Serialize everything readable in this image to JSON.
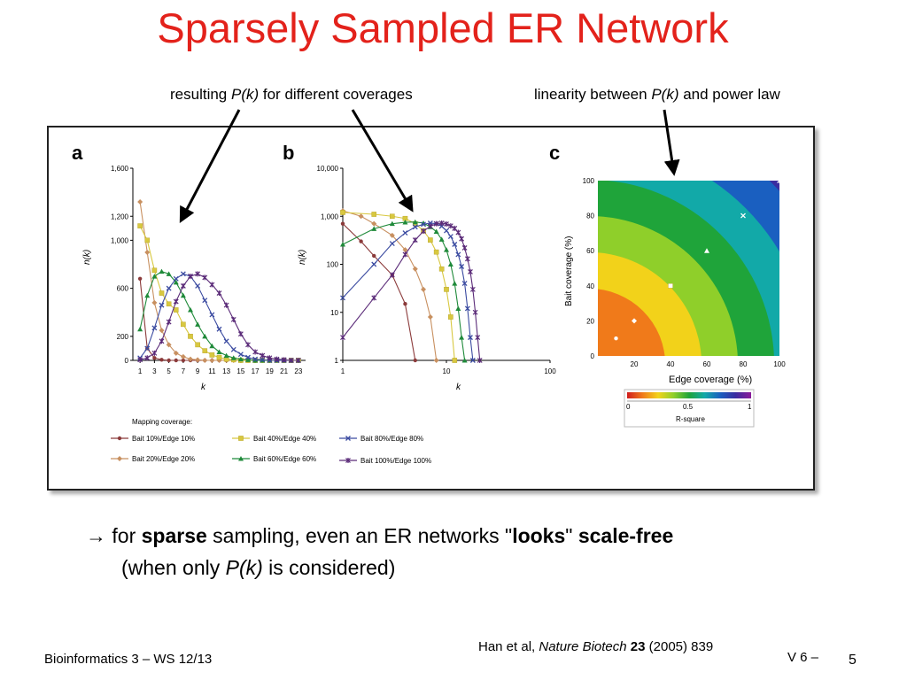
{
  "slide": {
    "title": "Sparsely Sampled ER Network",
    "annotation_left": {
      "pre": "resulting ",
      "italic": "P(k)",
      "post": " for different coverages"
    },
    "annotation_right": {
      "pre": "linearity between ",
      "italic": "P(k)",
      "post": " and power law"
    },
    "bullet": {
      "arrow": "→",
      "p1": " for ",
      "b1": "sparse",
      "p2": " sampling, even an ER networks \"",
      "b2": "looks",
      "p3": "\" ",
      "b3": "scale-free",
      "line2_pre": "(when only ",
      "line2_italic": "P(k)",
      "line2_post": " is considered)"
    },
    "citation": {
      "authors": "Han et al,  ",
      "journal": "Nature Biotech",
      "volume": "23",
      "rest": " (2005) 839"
    },
    "footer_left": "Bioinformatics 3 – WS 12/13",
    "footer_right": "V 6  –",
    "page_number": "5"
  },
  "panels": {
    "a": {
      "label": "a",
      "ylabel": "n(k)",
      "xlabel": "k",
      "yticks": [
        "1,600",
        "1,200",
        "1,000",
        "600",
        "200",
        "0"
      ],
      "xticks": [
        "1",
        "3",
        "5",
        "7",
        "9",
        "11",
        "13",
        "15",
        "17",
        "19",
        "21",
        "23"
      ]
    },
    "b": {
      "label": "b",
      "ylabel": "n(k)",
      "xlabel": "k",
      "yticks": [
        "10,000",
        "1,000",
        "100",
        "10",
        "1"
      ],
      "xticks": [
        "1",
        "10",
        "100"
      ]
    },
    "c": {
      "label": "c",
      "ylabel": "Bait coverage  (%)",
      "xlabel": "Edge coverage  (%)",
      "yticks": [
        "100",
        "80",
        "60",
        "40",
        "20",
        "0"
      ],
      "xticks": [
        "20",
        "40",
        "60",
        "80",
        "100"
      ],
      "colorbar_title": "R-square",
      "colorbar_ticks": [
        "0",
        "0.5",
        "1"
      ],
      "colors": [
        "#d01c1c",
        "#f07a1a",
        "#f2d21a",
        "#8fcf2a",
        "#1fa43a",
        "#12a9a8",
        "#1a5fc0",
        "#3a2ca0",
        "#8a1a9a"
      ]
    },
    "legend": {
      "title": "Mapping coverage:",
      "items": [
        {
          "label": "Bait 10%/Edge 10%",
          "color": "#8b3a3a",
          "marker": "circle"
        },
        {
          "label": "Bait 40%/Edge 40%",
          "color": "#d8c840",
          "marker": "square"
        },
        {
          "label": "Bait 80%/Edge 80%",
          "color": "#3a4aa0",
          "marker": "x"
        },
        {
          "label": "Bait 20%/Edge 20%",
          "color": "#c89060",
          "marker": "diamond"
        },
        {
          "label": "Bait 60%/Edge 60%",
          "color": "#1f8a3a",
          "marker": "triangle"
        },
        {
          "label": "Bait 100%/Edge 100%",
          "color": "#5a2a78",
          "marker": "asterisk"
        }
      ]
    }
  },
  "chart_data": [
    {
      "type": "line",
      "panel": "a",
      "x": [
        1,
        2,
        3,
        4,
        5,
        6,
        7,
        8,
        9,
        10,
        11,
        12,
        13,
        14,
        15,
        16,
        17,
        18,
        19,
        20,
        21,
        22,
        23
      ],
      "ylim": [
        0,
        1600
      ],
      "series": [
        {
          "name": "Bait 10%/Edge 10%",
          "values": [
            680,
            100,
            20,
            5,
            0,
            0,
            0,
            0,
            0,
            0,
            0,
            0,
            0,
            0,
            0,
            0,
            0,
            0,
            0,
            0,
            0,
            0,
            0
          ]
        },
        {
          "name": "Bait 20%/Edge 20%",
          "values": [
            1320,
            900,
            480,
            250,
            130,
            60,
            30,
            10,
            5,
            0,
            0,
            0,
            0,
            0,
            0,
            0,
            0,
            0,
            0,
            0,
            0,
            0,
            0
          ]
        },
        {
          "name": "Bait 40%/Edge 40%",
          "values": [
            1120,
            1000,
            750,
            560,
            470,
            420,
            300,
            200,
            130,
            80,
            45,
            25,
            10,
            5,
            0,
            0,
            0,
            0,
            0,
            0,
            0,
            0,
            0
          ]
        },
        {
          "name": "Bait 60%/Edge 60%",
          "values": [
            260,
            540,
            700,
            740,
            720,
            650,
            540,
            420,
            300,
            200,
            120,
            70,
            40,
            20,
            10,
            5,
            0,
            0,
            0,
            0,
            0,
            0,
            0
          ]
        },
        {
          "name": "Bait 80%/Edge 80%",
          "values": [
            20,
            100,
            270,
            460,
            600,
            680,
            720,
            700,
            620,
            500,
            380,
            260,
            160,
            90,
            50,
            25,
            10,
            5,
            0,
            0,
            0,
            0,
            0
          ]
        },
        {
          "name": "Bait 100%/Edge 100%",
          "values": [
            5,
            20,
            60,
            160,
            320,
            490,
            620,
            700,
            720,
            690,
            630,
            560,
            460,
            340,
            220,
            130,
            70,
            40,
            20,
            10,
            5,
            0,
            0
          ]
        }
      ]
    },
    {
      "type": "line",
      "panel": "b",
      "scale": "log-log",
      "xlim": [
        1,
        100
      ],
      "ylim": [
        1,
        10000
      ],
      "series": [
        {
          "name": "Bait 10%/Edge 10%",
          "x": [
            1,
            1.5,
            2,
            3,
            4,
            5
          ],
          "values": [
            700,
            300,
            150,
            60,
            15,
            1
          ]
        },
        {
          "name": "Bait 20%/Edge 20%",
          "x": [
            1,
            1.5,
            2,
            3,
            4,
            5,
            6,
            7,
            8
          ],
          "values": [
            1300,
            1000,
            700,
            400,
            200,
            80,
            30,
            8,
            1
          ]
        },
        {
          "name": "Bait 40%/Edge 40%",
          "x": [
            1,
            2,
            3,
            4,
            5,
            6,
            7,
            8,
            9,
            10,
            11,
            12
          ],
          "values": [
            1200,
            1100,
            1000,
            900,
            700,
            500,
            320,
            180,
            80,
            30,
            8,
            1
          ]
        },
        {
          "name": "Bait 60%/Edge 60%",
          "x": [
            1,
            2,
            3,
            4,
            5,
            6,
            7,
            8,
            9,
            10,
            11,
            12,
            13,
            14,
            15
          ],
          "values": [
            260,
            550,
            700,
            750,
            760,
            720,
            600,
            480,
            330,
            200,
            100,
            40,
            12,
            3,
            1
          ]
        },
        {
          "name": "Bait 80%/Edge 80%",
          "x": [
            1,
            2,
            3,
            4,
            5,
            6,
            7,
            8,
            9,
            10,
            11,
            12,
            13,
            14,
            15,
            16,
            17,
            18
          ],
          "values": [
            20,
            100,
            270,
            450,
            600,
            680,
            720,
            700,
            620,
            500,
            380,
            260,
            160,
            90,
            40,
            12,
            3,
            1
          ]
        },
        {
          "name": "Bait 100%/Edge 100%",
          "x": [
            1,
            2,
            3,
            4,
            5,
            6,
            7,
            8,
            9,
            10,
            11,
            12,
            13,
            14,
            15,
            16,
            17,
            18,
            19,
            20,
            21
          ],
          "values": [
            3,
            20,
            60,
            160,
            320,
            490,
            620,
            700,
            720,
            690,
            630,
            560,
            460,
            340,
            220,
            130,
            70,
            30,
            10,
            3,
            1
          ]
        }
      ]
    },
    {
      "type": "heatmap",
      "panel": "c",
      "xlabel": "Edge coverage  (%)",
      "ylabel": "Bait coverage  (%)",
      "xlim": [
        0,
        100
      ],
      "ylim": [
        0,
        100
      ],
      "zlabel": "R-square",
      "zlim": [
        0,
        1
      ],
      "points": [
        {
          "x": 10,
          "y": 10,
          "marker": "circle"
        },
        {
          "x": 20,
          "y": 20,
          "marker": "diamond"
        },
        {
          "x": 40,
          "y": 40,
          "marker": "square"
        },
        {
          "x": 60,
          "y": 60,
          "marker": "triangle"
        },
        {
          "x": 80,
          "y": 80,
          "marker": "x"
        },
        {
          "x": 100,
          "y": 100,
          "marker": "asterisk"
        }
      ]
    }
  ]
}
